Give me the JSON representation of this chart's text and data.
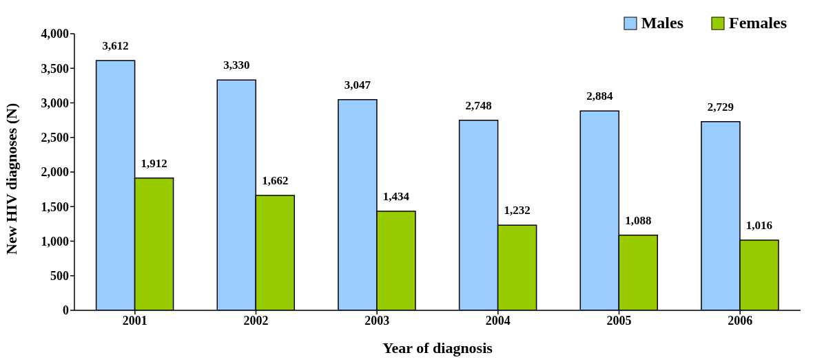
{
  "chart_data": {
    "type": "bar",
    "xlabel": "Year of diagnosis",
    "ylabel": "New HIV diagnoses (N)",
    "categories": [
      "2001",
      "2002",
      "2003",
      "2004",
      "2005",
      "2006"
    ],
    "series": [
      {
        "name": "Males",
        "color": "#99ccff",
        "values": [
          3612,
          3330,
          3047,
          2748,
          2884,
          2729
        ],
        "value_labels": [
          "3,612",
          "3,330",
          "3,047",
          "2,748",
          "2,884",
          "2,729"
        ]
      },
      {
        "name": "Females",
        "color": "#99cc00",
        "values": [
          1912,
          1662,
          1434,
          1232,
          1088,
          1016
        ],
        "value_labels": [
          "1,912",
          "1,662",
          "1,434",
          "1,232",
          "1,088",
          "1,016"
        ]
      }
    ],
    "ylim": [
      0,
      4000
    ],
    "yticks": [
      0,
      {
        "value": 500,
        "label": "500"
      },
      {
        "value": 1000,
        "label": "1,000"
      },
      {
        "value": 1500,
        "label": "1,500"
      },
      {
        "value": 2000,
        "label": "2,000"
      },
      {
        "value": 2500,
        "label": "2,500"
      },
      {
        "value": 3000,
        "label": "3,000"
      },
      {
        "value": 3500,
        "label": "3,500"
      },
      {
        "value": 4000,
        "label": "4,000"
      }
    ],
    "legend": "top right",
    "grid": false
  }
}
